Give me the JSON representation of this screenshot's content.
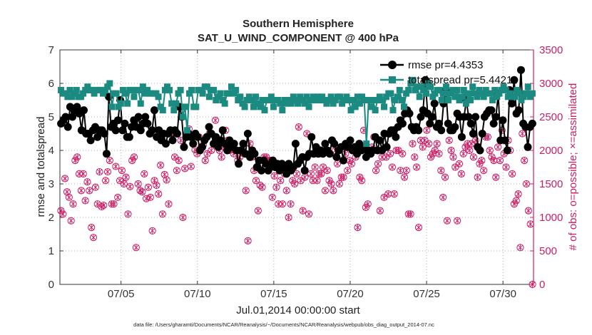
{
  "chart_data": {
    "type": "line",
    "title": "Southern Hemisphere",
    "subtitle": "SAT_U_WIND_COMPONENT @ 400 hPa",
    "xlabel": "Jul.01,2014 00:00:00 start",
    "ylabel": "rmse and totalspread",
    "ylabel_right": "# of obs: o=possible; ×=assimilated",
    "footnote": "data file: /Users/gharamti/Documents/NCAR/Reanalysis/~/Documents/NCAR/Reanalysis/webpub/obs_diag_output_2014-07.nc",
    "xlim": [
      1,
      32
    ],
    "ylim": [
      0,
      7
    ],
    "ylim_right": [
      0,
      3500
    ],
    "x_ticks": [
      5,
      10,
      15,
      20,
      25,
      30
    ],
    "x_tick_labels": [
      "07/05",
      "07/10",
      "07/15",
      "07/20",
      "07/25",
      "07/30"
    ],
    "y_ticks": [
      0,
      1,
      2,
      3,
      4,
      5,
      6,
      7
    ],
    "y_ticks_right": [
      0,
      500,
      1000,
      1500,
      2000,
      2500,
      3000,
      3500
    ],
    "series": [
      {
        "name": "rmse",
        "legend": "rmse pr=4.4353",
        "color": "#000000",
        "marker": "circle",
        "values": [
          4.8,
          4.9,
          5.0,
          4.7,
          5.3,
          5.0,
          5.2,
          5.3,
          5.1,
          4.6,
          5.2,
          4.5,
          4.5,
          4.3,
          4.6,
          4.7,
          4.4,
          4.6,
          4.6,
          4.5,
          3.9,
          5.6,
          4.7,
          4.8,
          4.6,
          4.9,
          5.5,
          4.6,
          4.8,
          4.4,
          4.4,
          4.7,
          4.9,
          4.7,
          5.0,
          4.6,
          4.8,
          5.0,
          4.8,
          4.5,
          4.6,
          5.2,
          4.4,
          4.6,
          4.3,
          4.5,
          4.2,
          4.5,
          4.6,
          4.3,
          4.6,
          4.5,
          5.3,
          5.0,
          4.1,
          4.4,
          4.5,
          4.4,
          4.2,
          4.5,
          4.4,
          4.0,
          4.1,
          4.3,
          4.4,
          4.7,
          4.5,
          4.2,
          4.4,
          4.1,
          4.3,
          4.6,
          4.2,
          4.0,
          4.3,
          4.1,
          4.2,
          4.0,
          3.6,
          4.0,
          4.2,
          3.9,
          4.5,
          3.8,
          4.0,
          3.9,
          3.5,
          3.7,
          3.4,
          3.7,
          3.6,
          3.4,
          3.5,
          3.7,
          3.5,
          3.6,
          3.4,
          3.6,
          3.5,
          3.3,
          3.6,
          3.4,
          3.5,
          4.2,
          3.6,
          3.7,
          3.8,
          3.4,
          3.8,
          3.9,
          4.4,
          3.9,
          4.1,
          3.9,
          4.0,
          3.9,
          4.2,
          4.0,
          3.9,
          4.3,
          4.2,
          3.8,
          4.0,
          4.1,
          3.7,
          4.2,
          4.1,
          4.3,
          4.0,
          4.1,
          3.9,
          4.2,
          4.0,
          4.1,
          3.8,
          4.0,
          3.9,
          4.0,
          4.4,
          4.0,
          4.3,
          4.0,
          4.5,
          4.1,
          4.5,
          4.6,
          4.6,
          4.4,
          4.7,
          4.9,
          4.8,
          5.1,
          5.2,
          5.1,
          4.7,
          4.6,
          4.7,
          4.6,
          5.0,
          5.2,
          6.1,
          5.1,
          4.8,
          5.0,
          5.4,
          4.7,
          4.8,
          4.6,
          5.4,
          5.8,
          4.8,
          4.6,
          4.6,
          4.7,
          5.1,
          5.0,
          4.4,
          5.0,
          5.5,
          5.0,
          4.8,
          4.5,
          5.0,
          4.1,
          4.0,
          4.5,
          5.0,
          5.1,
          5.2,
          5.2,
          4.8,
          5.0,
          5.7,
          4.3,
          4.9,
          4.3,
          4.0,
          5.8,
          5.4,
          6.1,
          5.1,
          5.2,
          6.4,
          4.8,
          4.7,
          4.1,
          4.7,
          4.8
        ]
      },
      {
        "name": "totalspread",
        "legend": "totalspread pr=5.4421",
        "color": "#1b8a80",
        "marker": "square",
        "values": [
          5.8,
          5.7,
          5.7,
          5.6,
          5.8,
          5.6,
          5.7,
          5.8,
          5.6,
          5.6,
          5.7,
          5.8,
          5.9,
          5.8,
          5.8,
          5.7,
          5.8,
          5.8,
          5.8,
          5.7,
          5.8,
          5.9,
          6.0,
          5.3,
          5.7,
          5.7,
          5.3,
          5.4,
          5.8,
          5.7,
          5.4,
          5.8,
          5.8,
          5.6,
          5.8,
          5.8,
          5.4,
          5.9,
          5.7,
          5.8,
          5.7,
          5.7,
          5.7,
          5.7,
          5.6,
          5.3,
          5.2,
          5.8,
          5.9,
          5.8,
          5.4,
          5.2,
          5.4,
          5.7,
          5.8,
          5.0,
          5.3,
          4.6,
          5.7,
          5.8,
          5.3,
          5.3,
          5.8,
          5.8,
          5.7,
          5.9,
          5.9,
          5.6,
          5.8,
          5.8,
          5.5,
          5.6,
          5.7,
          5.5,
          5.4,
          5.7,
          5.7,
          5.9,
          5.7,
          5.8,
          5.5,
          5.6,
          5.4,
          5.3,
          5.5,
          5.6,
          5.5,
          5.3,
          5.6,
          5.4,
          5.3,
          5.5,
          5.2,
          5.5,
          5.5,
          5.6,
          5.3,
          5.5,
          5.5,
          5.4,
          5.2,
          5.5,
          5.4,
          5.5,
          5.4,
          5.6,
          5.5,
          5.4,
          5.6,
          5.5,
          5.4,
          5.6,
          5.3,
          5.5,
          5.6,
          5.5,
          5.6,
          5.5,
          5.6,
          5.5,
          5.4,
          5.5,
          5.6,
          5.4,
          5.5,
          5.6,
          5.6,
          5.4,
          5.5,
          5.6,
          5.5,
          5.2,
          5.5,
          5.3,
          5.6,
          5.4,
          5.6,
          5.5,
          4.2,
          5.5,
          5.3,
          5.5,
          5.2,
          5.5,
          5.6,
          5.5,
          5.3,
          5.6,
          5.7,
          5.7,
          5.2,
          5.5,
          5.6,
          5.8,
          5.5,
          5.3,
          5.7,
          5.8,
          6.0,
          6.1,
          5.8,
          5.9,
          5.6,
          5.9,
          5.8,
          5.7,
          6.0,
          5.9,
          5.6,
          5.7,
          5.8,
          5.8,
          5.5,
          5.7,
          5.9,
          5.5,
          5.7,
          5.8,
          5.6,
          5.8,
          5.5,
          5.6,
          5.8,
          5.4,
          5.7,
          5.5,
          5.9,
          5.7,
          5.6,
          5.8,
          5.7,
          5.6,
          5.8,
          5.7,
          5.7,
          5.5,
          5.8,
          5.6,
          5.7,
          5.8,
          5.9,
          5.8,
          5.6,
          5.7,
          5.6,
          5.6,
          5.8,
          5.7,
          5.5,
          5.6,
          5.7,
          5.9,
          5.6,
          5.7
        ]
      },
      {
        "name": "obs_possible",
        "legend": "",
        "color": "#cc1e66",
        "marker": "circle-open",
        "axis": "right",
        "values": [
          1100,
          1050,
          1580,
          1380,
          1300,
          950,
          1200,
          1850,
          1900,
          1650,
          1400,
          1650,
          1250,
          1530,
          1400,
          850,
          700,
          1450,
          1200,
          1680,
          1160,
          1180,
          1550,
          1680,
          1850,
          1200,
          1200,
          1760,
          1300,
          1550,
          1700,
          1500,
          1600,
          1050,
          1460,
          1850,
          1900,
          550,
          1500,
          1400,
          1380,
          1650,
          1280,
          1450,
          1300,
          800,
          1550,
          1480,
          1350,
          1780,
          1050,
          1640,
          1560,
          1200,
          2300,
          2250,
          1900,
          1700,
          1850,
          2150,
          1000,
          1730,
          2250,
          2320,
          1760,
          2200,
          2010,
          1950,
          2200,
          2050,
          2080,
          1850,
          1950,
          2250,
          2000,
          2100,
          2450,
          2100,
          2000,
          1900,
          2050,
          2300,
          2150,
          2000,
          2050,
          1950,
          2000,
          1850,
          1900,
          1980,
          1950,
          1400,
          650,
          2100,
          1900,
          1700,
          1550,
          1100,
          1480,
          1450,
          1900,
          1900,
          1850,
          1850,
          1300,
          1620,
          1450,
          1200,
          1550,
          1200,
          1650,
          1400,
          1000,
          1200,
          1550,
          1500,
          1650,
          2350,
          1550,
          1100,
          1600,
          2250,
          1050,
          1650,
          1550,
          1750,
          1550,
          1650,
          1650,
          1750,
          1400,
          1700,
          1550,
          1500,
          1400,
          2000,
          1800,
          1500,
          1600,
          1600,
          1950,
          1700,
          1850,
          1800,
          2000,
          1900,
          850,
          1600,
          1550,
          2300,
          1150,
          1200,
          2000,
          2050,
          2200,
          1700,
          1800,
          1100,
          1900,
          1300,
          1900,
          1350,
          1950,
          1750,
          1350,
          2000,
          2000,
          1700,
          1950,
          1600,
          1700,
          1050,
          1050,
          2100,
          1900,
          1750,
          850,
          2150,
          2050,
          2150,
          2300,
          2100,
          1900,
          1950,
          2000,
          2100,
          1950,
          1700,
          1300,
          1600,
          950,
          2150,
          2000,
          1900,
          1750,
          950,
          1800,
          1650,
          1950,
          2050,
          2100,
          2000,
          2100,
          1900,
          2150,
          1600,
          1800,
          1850,
          1700,
          2200,
          2200,
          2000,
          1900,
          1850,
          1600,
          2050,
          1850,
          2300,
          1950,
          1750,
          2150,
          2000,
          1650,
          1200,
          1250,
          1350,
          550,
          2250,
          1850,
          1500,
          1100,
          900,
          0
        ]
      }
    ],
    "legend_position": "top-right"
  }
}
